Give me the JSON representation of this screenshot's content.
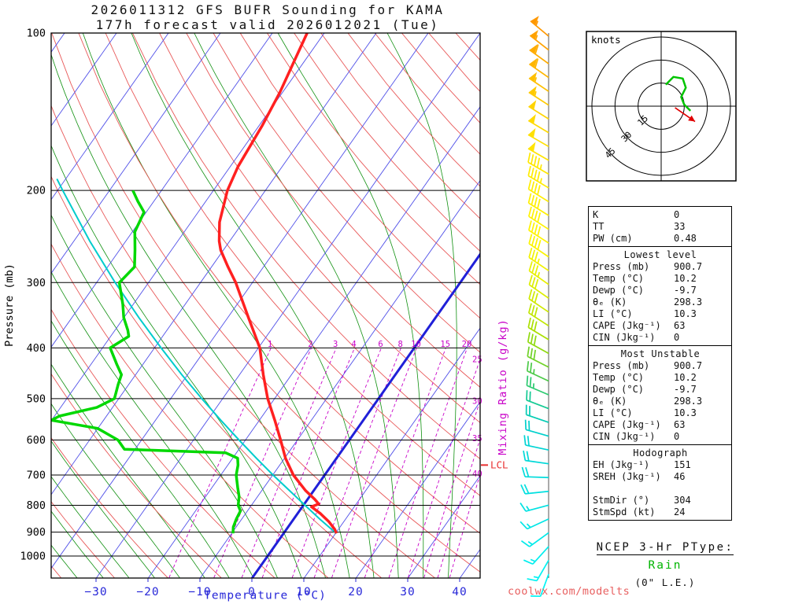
{
  "title": {
    "line1": "2026011312 GFS BUFR Sounding for KAMA",
    "line2": "177h forecast valid 2026012021 (Tue)"
  },
  "axes": {
    "pressure_label": "Pressure (mb)",
    "temperature_label": "Temperature (°C)",
    "mixing_ratio_label": "Mixing Ratio (g/kg)",
    "pressure_ticks": [
      100,
      200,
      300,
      400,
      500,
      600,
      700,
      800,
      900,
      1000
    ],
    "temperature_ticks": [
      -30,
      -20,
      -10,
      0,
      10,
      20,
      30,
      40
    ]
  },
  "footer": {
    "credit": "coolwx.com/modelts"
  },
  "colors": {
    "isotherm": "#5050e8",
    "dry_adiabat": "#e85858",
    "moist_adiabat": "#109010",
    "mixing_ratio": "#c800c8",
    "temperature_trace": "#ff2020",
    "dewpoint_trace": "#00d800",
    "parcel_trace": "#00cccc",
    "freezing_line": "#2020d8",
    "lcl": "#e83030",
    "hodo_trace": "#00c400",
    "storm_arrow": "#e00000",
    "temp_axis_text": "#2828d8"
  },
  "chart_data": {
    "type": "line",
    "variant": "skew-t-log-p",
    "pressure_range_mb": [
      100,
      1100
    ],
    "temperature_profile": [
      [
        905,
        10.2
      ],
      [
        890,
        9.4
      ],
      [
        860,
        7.2
      ],
      [
        830,
        4.5
      ],
      [
        805,
        1.8
      ],
      [
        795,
        2.8
      ],
      [
        780,
        1.5
      ],
      [
        750,
        -1.5
      ],
      [
        700,
        -6.0
      ],
      [
        650,
        -9.8
      ],
      [
        600,
        -13.2
      ],
      [
        550,
        -17.0
      ],
      [
        500,
        -21.3
      ],
      [
        450,
        -25.4
      ],
      [
        400,
        -29.7
      ],
      [
        350,
        -36.0
      ],
      [
        300,
        -43.2
      ],
      [
        280,
        -46.8
      ],
      [
        260,
        -50.5
      ],
      [
        250,
        -52.0
      ],
      [
        230,
        -54.5
      ],
      [
        200,
        -57.3
      ],
      [
        180,
        -58.5
      ],
      [
        150,
        -59.4
      ],
      [
        130,
        -60.5
      ],
      [
        100,
        -63.3
      ]
    ],
    "dewpoint_profile": [
      [
        905,
        -9.7
      ],
      [
        880,
        -10.5
      ],
      [
        850,
        -11.0
      ],
      [
        820,
        -11.3
      ],
      [
        800,
        -12.5
      ],
      [
        770,
        -13.5
      ],
      [
        740,
        -15.0
      ],
      [
        700,
        -17.0
      ],
      [
        670,
        -18.0
      ],
      [
        650,
        -19.0
      ],
      [
        635,
        -22.0
      ],
      [
        625,
        -42.0
      ],
      [
        600,
        -44.5
      ],
      [
        570,
        -50.0
      ],
      [
        550,
        -60.0
      ],
      [
        540,
        -59.0
      ],
      [
        520,
        -53.0
      ],
      [
        500,
        -50.8
      ],
      [
        470,
        -52.0
      ],
      [
        450,
        -52.7
      ],
      [
        430,
        -55.0
      ],
      [
        400,
        -58.5
      ],
      [
        380,
        -56.5
      ],
      [
        370,
        -57.5
      ],
      [
        350,
        -60.0
      ],
      [
        330,
        -62.0
      ],
      [
        300,
        -65.6
      ],
      [
        280,
        -64.8
      ],
      [
        260,
        -67.0
      ],
      [
        240,
        -69.5
      ],
      [
        220,
        -70.4
      ],
      [
        210,
        -73.0
      ],
      [
        200,
        -75.5
      ]
    ],
    "parcel_path": [
      [
        905,
        10.2
      ],
      [
        850,
        5.1
      ],
      [
        800,
        0.4
      ],
      [
        750,
        -4.6
      ],
      [
        700,
        -9.9
      ],
      [
        650,
        -15.4
      ],
      [
        600,
        -21.2
      ],
      [
        550,
        -27.4
      ],
      [
        500,
        -34.0
      ],
      [
        450,
        -41.1
      ],
      [
        400,
        -48.7
      ],
      [
        350,
        -57.1
      ],
      [
        300,
        -66.4
      ],
      [
        250,
        -76.9
      ],
      [
        200,
        -89.0
      ],
      [
        190,
        -91.7
      ]
    ],
    "freezing_isotherm_c": 0,
    "lcl": {
      "pressure_mb": 670,
      "label": "LCL"
    },
    "background": {
      "isotherm_c": [
        -120,
        40,
        10
      ],
      "dry_adiabat_theta_k": [
        230,
        470,
        10
      ],
      "moist_adiabat_thetaw_c": [
        -40,
        35,
        5
      ],
      "mixing_ratio_top_mb": 400
    },
    "mixing_ratio_lines_gkg": [
      1,
      2,
      3,
      4,
      6,
      8,
      10,
      15,
      20,
      25,
      30,
      35,
      40
    ],
    "wind_barbs": [
      {
        "dir": 310,
        "spd": 55,
        "color": "#ff9800"
      },
      {
        "dir": 308,
        "spd": 55,
        "color": "#ffa200"
      },
      {
        "dir": 306,
        "spd": 60,
        "color": "#ffac00"
      },
      {
        "dir": 305,
        "spd": 60,
        "color": "#ffb600"
      },
      {
        "dir": 304,
        "spd": 55,
        "color": "#ffc000"
      },
      {
        "dir": 303,
        "spd": 55,
        "color": "#ffca00"
      },
      {
        "dir": 302,
        "spd": 50,
        "color": "#ffd400"
      },
      {
        "dir": 301,
        "spd": 50,
        "color": "#ffda00"
      },
      {
        "dir": 300,
        "spd": 50,
        "color": "#ffe000"
      },
      {
        "dir": 300,
        "spd": 48,
        "color": "#ffe400"
      },
      {
        "dir": 300,
        "spd": 45,
        "color": "#ffe800"
      },
      {
        "dir": 301,
        "spd": 45,
        "color": "#ffec00"
      },
      {
        "dir": 302,
        "spd": 42,
        "color": "#ffee00"
      },
      {
        "dir": 302,
        "spd": 40,
        "color": "#fff000"
      },
      {
        "dir": 303,
        "spd": 40,
        "color": "#fff200"
      },
      {
        "dir": 303,
        "spd": 38,
        "color": "#fff400"
      },
      {
        "dir": 304,
        "spd": 38,
        "color": "#fbf400"
      },
      {
        "dir": 304,
        "spd": 35,
        "color": "#f2f200"
      },
      {
        "dir": 305,
        "spd": 35,
        "color": "#e8f000"
      },
      {
        "dir": 305,
        "spd": 32,
        "color": "#dcee00"
      },
      {
        "dir": 304,
        "spd": 32,
        "color": "#cfea00"
      },
      {
        "dir": 303,
        "spd": 30,
        "color": "#c0e600"
      },
      {
        "dir": 301,
        "spd": 30,
        "color": "#aae000"
      },
      {
        "dir": 299,
        "spd": 28,
        "color": "#90da10"
      },
      {
        "dir": 297,
        "spd": 28,
        "color": "#70d228"
      },
      {
        "dir": 295,
        "spd": 25,
        "color": "#4cca48"
      },
      {
        "dir": 293,
        "spd": 25,
        "color": "#2cca70"
      },
      {
        "dir": 291,
        "spd": 22,
        "color": "#14ca94"
      },
      {
        "dir": 289,
        "spd": 22,
        "color": "#04ccb4"
      },
      {
        "dir": 286,
        "spd": 20,
        "color": "#00d0cc"
      },
      {
        "dir": 282,
        "spd": 20,
        "color": "#00d4d4"
      },
      {
        "dir": 278,
        "spd": 18,
        "color": "#00d8d8"
      },
      {
        "dir": 272,
        "spd": 18,
        "color": "#00dcdc"
      },
      {
        "dir": 264,
        "spd": 18,
        "color": "#00e0e0"
      },
      {
        "dir": 255,
        "spd": 17,
        "color": "#00e2e2"
      },
      {
        "dir": 245,
        "spd": 16,
        "color": "#00e6e6"
      },
      {
        "dir": 234,
        "spd": 15,
        "color": "#00eaea"
      },
      {
        "dir": 222,
        "spd": 14,
        "color": "#00eeee"
      },
      {
        "dir": 210,
        "spd": 13,
        "color": "#00f2f2"
      },
      {
        "dir": 200,
        "spd": 12,
        "color": "#00f4f4"
      }
    ],
    "hodograph": {
      "unit_label": "knots",
      "rings_kt": [
        15,
        30,
        45
      ],
      "trace_uv_kt": [
        [
          3,
          14
        ],
        [
          8,
          19
        ],
        [
          14,
          18
        ],
        [
          16,
          12
        ],
        [
          13,
          6
        ],
        [
          15,
          1
        ],
        [
          19,
          -3
        ]
      ],
      "storm_motion_segment_uv_kt": [
        [
          9,
          -1
        ],
        [
          22,
          -10
        ]
      ]
    }
  },
  "stats_panel": {
    "sections": [
      {
        "header": null,
        "rows": [
          [
            "K",
            "0"
          ],
          [
            "TT",
            "33"
          ],
          [
            "PW (cm)",
            "0.48"
          ]
        ]
      },
      {
        "header": "Lowest level",
        "rows": [
          [
            "Press (mb)",
            "900.7"
          ],
          [
            "Temp (°C)",
            "10.2"
          ],
          [
            "Dewp (°C)",
            "-9.7"
          ],
          [
            "θₑ (K)",
            "298.3"
          ],
          [
            "LI (°C)",
            "10.3"
          ],
          [
            "CAPE (Jkg⁻¹)",
            "63"
          ],
          [
            "CIN (Jkg⁻¹)",
            "0"
          ]
        ]
      },
      {
        "header": "Most Unstable",
        "rows": [
          [
            "Press (mb)",
            "900.7"
          ],
          [
            "Temp (°C)",
            "10.2"
          ],
          [
            "Dewp (°C)",
            "-9.7"
          ],
          [
            "θₑ (K)",
            "298.3"
          ],
          [
            "LI (°C)",
            "10.3"
          ],
          [
            "CAPE (Jkg⁻¹)",
            "63"
          ],
          [
            "CIN (Jkg⁻¹)",
            "0"
          ]
        ]
      },
      {
        "header": "Hodograph",
        "rows": [
          [
            "EH (Jkg⁻¹)",
            "151"
          ],
          [
            "SREH (Jkg⁻¹)",
            "46"
          ],
          [
            "",
            ""
          ],
          [
            "StmDir (°)",
            "304"
          ],
          [
            "StmSpd (kt)",
            "24"
          ]
        ]
      }
    ]
  },
  "ptype": {
    "heading": "NCEP 3-Hr PType:",
    "value": "Rain",
    "note": "(0\" L.E.)"
  }
}
